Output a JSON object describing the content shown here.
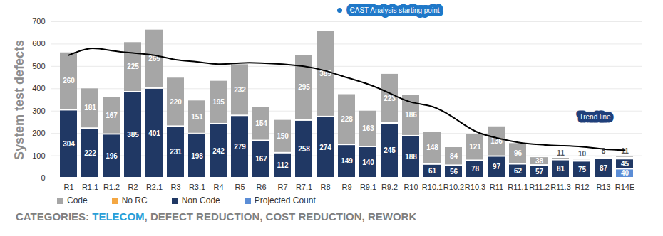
{
  "chart_data": {
    "type": "bar",
    "stacked": true,
    "data_labels": true,
    "grid": true,
    "legend": "bottom",
    "y_label": "System test defects",
    "ylim": [
      0,
      700
    ],
    "yticks": [
      0,
      100,
      200,
      300,
      400,
      500,
      600,
      700
    ],
    "categories": [
      "R1",
      "R1.1",
      "R1.2",
      "R2",
      "R2.1",
      "R3",
      "R3.1",
      "R4",
      "R5",
      "R6",
      "R7",
      "R7.1",
      "R8",
      "R9",
      "R9.1",
      "R9.2",
      "R10",
      "R10.1",
      "R10.2",
      "R10.3",
      "R11",
      "R11.1",
      "R11.2",
      "R11.3",
      "R12",
      "R13",
      "R14E"
    ],
    "series": [
      {
        "name": "Code",
        "type": "bar",
        "color": "#a6a6a6",
        "values": [
          260,
          181,
          167,
          225,
          265,
          220,
          151,
          195,
          232,
          154,
          150,
          295,
          385,
          228,
          163,
          223,
          186,
          148,
          84,
          121,
          136,
          96,
          38,
          11,
          10,
          8,
          11
        ]
      },
      {
        "name": "No RC",
        "type": "bar",
        "color": "#f4a742",
        "values": [
          null,
          null,
          null,
          null,
          null,
          null,
          null,
          null,
          null,
          null,
          null,
          null,
          null,
          null,
          null,
          null,
          null,
          null,
          null,
          null,
          null,
          null,
          null,
          null,
          4,
          5,
          5
        ],
        "value_labels": [
          null,
          null,
          null,
          null,
          null,
          null,
          null,
          null,
          null,
          null,
          null,
          null,
          null,
          null,
          null,
          null,
          null,
          null,
          null,
          null,
          null,
          null,
          null,
          null,
          null,
          null,
          null
        ]
      },
      {
        "name": "Non Code",
        "type": "bar",
        "color": "#203864",
        "values": [
          304,
          222,
          196,
          385,
          401,
          231,
          198,
          242,
          279,
          167,
          112,
          258,
          274,
          149,
          140,
          245,
          188,
          61,
          56,
          78,
          97,
          62,
          57,
          81,
          75,
          87,
          45
        ]
      },
      {
        "name": "Projected Count",
        "type": "bar",
        "color": "#5b8dd6",
        "values": [
          null,
          null,
          null,
          null,
          null,
          null,
          null,
          null,
          null,
          null,
          null,
          null,
          null,
          null,
          null,
          null,
          null,
          null,
          null,
          null,
          null,
          null,
          null,
          null,
          null,
          null,
          40
        ]
      },
      {
        "name": "Trend line",
        "type": "line",
        "color": "#000000",
        "values": [
          550,
          580,
          570,
          560,
          550,
          530,
          520,
          510,
          515,
          515,
          510,
          500,
          480,
          450,
          420,
          380,
          340,
          320,
          270,
          210,
          180,
          160,
          150,
          145,
          140,
          130,
          125
        ]
      }
    ],
    "annotations": [
      {
        "text": "CAST Analysis starting point",
        "category": "R8"
      }
    ],
    "caption": "CATEGORIES: TELECOM, DEFECT REDUCTION, COST REDUCTION, REWORK",
    "caption_highlight": "TELECOM"
  }
}
